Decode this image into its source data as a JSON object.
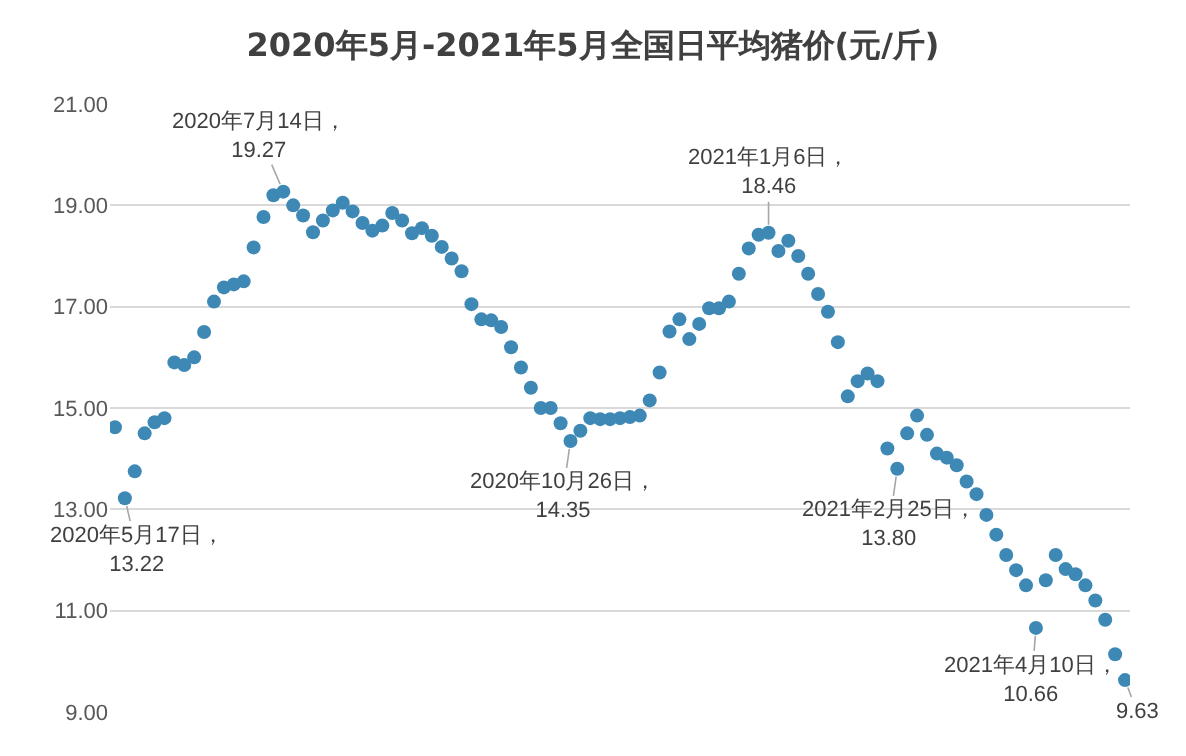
{
  "chart_data": {
    "type": "scatter",
    "title": "2020年5月-2021年5月全国日平均猪价(元/斤)",
    "categories": [
      null,
      null,
      null,
      null,
      null,
      null,
      null,
      null,
      null,
      null,
      null,
      null,
      null,
      null,
      null,
      null,
      null,
      null,
      null,
      null,
      null,
      null,
      null,
      null,
      null,
      null,
      null,
      null,
      null,
      null,
      null,
      null,
      null,
      null,
      null,
      null,
      null,
      null,
      null,
      null,
      null,
      null,
      null,
      null,
      null,
      null,
      null,
      null,
      null,
      null,
      null,
      null,
      null,
      null,
      null,
      null,
      null,
      null,
      null,
      null,
      null,
      null,
      null,
      null,
      null,
      null,
      null,
      null,
      null,
      null,
      null,
      null,
      null,
      null,
      null,
      null,
      null,
      null,
      null,
      null,
      null,
      null,
      null,
      null,
      null,
      null,
      null,
      null,
      null,
      null,
      null,
      null,
      null,
      null,
      null,
      null,
      null,
      null,
      null,
      null,
      null,
      null,
      null
    ],
    "series": [
      {
        "color": "#3e88b5",
        "values": [
          14.62,
          13.22,
          13.75,
          14.5,
          14.72,
          14.8,
          15.9,
          15.85,
          16.0,
          16.5,
          17.1,
          17.38,
          17.44,
          17.5,
          18.17,
          18.77,
          19.2,
          19.27,
          19.0,
          18.8,
          18.47,
          18.7,
          18.9,
          19.05,
          18.88,
          18.65,
          18.5,
          18.6,
          18.85,
          18.7,
          18.45,
          18.55,
          18.4,
          18.18,
          17.95,
          17.7,
          17.05,
          16.75,
          16.73,
          16.6,
          16.2,
          15.8,
          15.4,
          15.0,
          15.0,
          14.7,
          14.35,
          14.55,
          14.8,
          14.78,
          14.78,
          14.8,
          14.82,
          14.85,
          15.15,
          15.7,
          16.51,
          16.75,
          16.36,
          16.66,
          16.97,
          16.97,
          17.1,
          17.65,
          18.15,
          18.42,
          18.46,
          18.1,
          18.3,
          18.0,
          17.65,
          17.25,
          16.9,
          16.3,
          15.23,
          15.53,
          15.68,
          15.53,
          14.2,
          13.8,
          14.5,
          14.85,
          14.47,
          14.1,
          14.02,
          13.87,
          13.55,
          13.3,
          12.89,
          12.5,
          12.1,
          11.8,
          11.5,
          10.66,
          11.6,
          12.1,
          11.82,
          11.72,
          11.5,
          11.2,
          10.82,
          10.14,
          9.63
        ]
      }
    ],
    "ylim": [
      9,
      21
    ],
    "yticks": [
      {
        "value": 9,
        "label": "9.00"
      },
      {
        "value": 11,
        "label": "11.00"
      },
      {
        "value": 13,
        "label": "13.00"
      },
      {
        "value": 15,
        "label": "15.00"
      },
      {
        "value": 17,
        "label": "17.00"
      },
      {
        "value": 19,
        "label": "19.00"
      },
      {
        "value": 21,
        "label": "21.00"
      }
    ],
    "grid": "y",
    "marker": "circle",
    "tick_labels": "y",
    "annotations": [
      {
        "text": "2020年5月17日，\n13.22",
        "y": 13.22
      },
      {
        "text": "2020年7月14日，\n19.27",
        "y": 19.27
      },
      {
        "text": "2020年10月26日，\n14.35",
        "y": 14.35
      },
      {
        "text": "2021年1月6日，\n18.46",
        "y": 18.46
      },
      {
        "text": "2021年2月25日，\n13.80",
        "y": 13.8
      },
      {
        "text": "2021年4月10日，\n10.66",
        "y": 10.66
      },
      {
        "text": "9.63",
        "y": 9.63
      }
    ]
  }
}
